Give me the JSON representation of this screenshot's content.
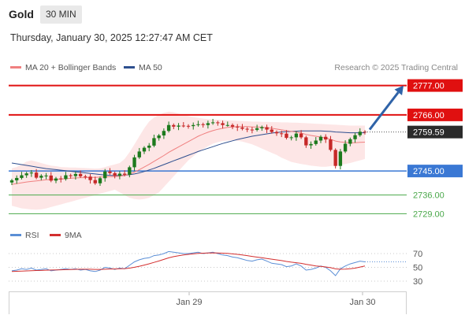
{
  "header": {
    "asset": "Gold",
    "timeframe": "30 MIN",
    "datetime": "Thursday, January 30, 2025 12:27:47 AM CET"
  },
  "legend": {
    "ma20": "MA 20 + Bollinger Bands",
    "ma50": "MA 50",
    "credit": "Research © 2025 Trading Central"
  },
  "rsi_legend": {
    "rsi": "RSI",
    "ma": "9MA"
  },
  "colors": {
    "up": "#1d7a1d",
    "down": "#c62828",
    "resistance": "#e01010",
    "support": "#3a78d4",
    "target": "#4aa84a",
    "ma20": "#f08080",
    "ma50": "#2e4f8f",
    "band": "#fde3e3",
    "arrow": "#2f63a8",
    "rsi": "#5b8fd6",
    "rsi_ma": "#d32f2f"
  },
  "chart_data": {
    "type": "candlestick",
    "instrument": "Gold",
    "interval": "30 MIN",
    "x_ticks": [
      "Jan 29",
      "Jan 30"
    ],
    "ylim": [
      2725,
      2781
    ],
    "levels": [
      {
        "value": "2777.00",
        "kind": "resistance"
      },
      {
        "value": "2766.00",
        "kind": "resistance"
      },
      {
        "value": "2745.00",
        "kind": "support"
      },
      {
        "value": "2736.00",
        "kind": "target"
      },
      {
        "value": "2729.00",
        "kind": "target"
      }
    ],
    "last_price": "2759.59",
    "arrow": {
      "from": 2760.5,
      "to": 2777.0,
      "direction": "up"
    },
    "closes": [
      2741.5,
      2742.4,
      2743.4,
      2744.1,
      2744.4,
      2742.5,
      2743.2,
      2743.3,
      2741.4,
      2742.2,
      2742.0,
      2743.4,
      2743.1,
      2743.9,
      2743.0,
      2742.9,
      2741.6,
      2740.4,
      2742.3,
      2744.8,
      2744.2,
      2743.2,
      2744.0,
      2743.6,
      2746.4,
      2750.1,
      2752.3,
      2753.7,
      2754.5,
      2757.3,
      2758.3,
      2760.0,
      2762.2,
      2761.6,
      2762.0,
      2761.9,
      2761.8,
      2762.2,
      2762.5,
      2762.2,
      2762.9,
      2763.2,
      2762.9,
      2762.2,
      2762.2,
      2761.6,
      2761.3,
      2760.8,
      2760.5,
      2760.4,
      2761.0,
      2761.4,
      2760.5,
      2759.6,
      2759.1,
      2759.0,
      2757.4,
      2757.6,
      2759.0,
      2757.6,
      2754.6,
      2755.1,
      2756.4,
      2757.8,
      2756.8,
      2752.9,
      2746.9,
      2752.3,
      2755.2,
      2756.9,
      2758.4,
      2759.7,
      2759.59
    ],
    "ma20": [
      2740.0,
      2740.3,
      2740.6,
      2740.9,
      2741.1,
      2741.3,
      2741.5,
      2741.7,
      2741.8,
      2741.9,
      2742.0,
      2742.1,
      2742.3,
      2742.4,
      2742.5,
      2742.5,
      2742.6,
      2742.6,
      2742.7,
      2742.8,
      2742.9,
      2742.9,
      2743.1,
      2743.3,
      2743.8,
      2744.6,
      2745.5,
      2746.5,
      2747.5,
      2748.6,
      2749.7,
      2750.8,
      2752.0,
      2753.0,
      2754.0,
      2755.0,
      2756.0,
      2757.0,
      2758.0,
      2758.8,
      2759.5,
      2760.1,
      2760.6,
      2761.0,
      2761.3,
      2761.5,
      2761.6,
      2761.6,
      2761.6,
      2761.5,
      2761.5,
      2761.4,
      2761.2,
      2761.0,
      2760.7,
      2760.4,
      2760.1,
      2759.8,
      2759.6,
      2759.2,
      2758.7,
      2758.3,
      2758.0,
      2757.7,
      2757.4,
      2756.9,
      2756.2,
      2755.9,
      2755.7,
      2755.6,
      2755.6,
      2755.7,
      2755.8
    ],
    "ma50": [
      2748.0,
      2747.7,
      2747.4,
      2747.1,
      2746.8,
      2746.5,
      2746.2,
      2745.9,
      2745.7,
      2745.5,
      2745.3,
      2745.1,
      2744.9,
      2744.7,
      2744.5,
      2744.3,
      2744.1,
      2743.9,
      2743.7,
      2743.5,
      2743.4,
      2743.3,
      2743.3,
      2743.4,
      2743.6,
      2743.9,
      2744.3,
      2744.8,
      2745.4,
      2746.0,
      2746.7,
      2747.4,
      2748.1,
      2748.8,
      2749.5,
      2750.2,
      2750.9,
      2751.6,
      2752.3,
      2752.9,
      2753.5,
      2754.1,
      2754.7,
      2755.3,
      2755.8,
      2756.3,
      2756.8,
      2757.2,
      2757.6,
      2758.0,
      2758.3,
      2758.6,
      2758.9,
      2759.2,
      2759.4,
      2759.6,
      2759.7,
      2759.8,
      2759.9,
      2760.0,
      2760.0,
      2760.0,
      2760.0,
      2760.0,
      2759.9,
      2759.8,
      2759.6,
      2759.5,
      2759.4,
      2759.3,
      2759.3,
      2759.3,
      2759.3
    ],
    "band_upper": [
      2746.0,
      2746.5,
      2747.5,
      2748.5,
      2749.0,
      2748.5,
      2748.0,
      2747.5,
      2747.0,
      2746.8,
      2746.5,
      2746.4,
      2746.3,
      2746.3,
      2746.2,
      2746.1,
      2746.0,
      2745.9,
      2746.0,
      2746.5,
      2747.0,
      2747.5,
      2748.0,
      2749.5,
      2752.0,
      2755.0,
      2758.0,
      2761.0,
      2763.5,
      2765.0,
      2766.0,
      2766.8,
      2767.2,
      2767.0,
      2766.5,
      2766.0,
      2765.6,
      2765.2,
      2764.9,
      2764.6,
      2764.4,
      2764.3,
      2764.2,
      2764.1,
      2764.0,
      2763.9,
      2763.8,
      2763.7,
      2763.6,
      2763.5,
      2763.5,
      2763.4,
      2763.4,
      2763.3,
      2763.3,
      2763.2,
      2763.2,
      2763.1,
      2763.1,
      2763.0,
      2762.9,
      2762.8,
      2762.7,
      2762.6,
      2762.5,
      2762.4,
      2762.3,
      2762.2,
      2762.1,
      2762.0,
      2762.0,
      2762.0,
      2762.0
    ],
    "band_lower": [
      2732.0,
      2731.5,
      2731.0,
      2730.8,
      2730.6,
      2730.5,
      2730.7,
      2731.0,
      2731.5,
      2732.0,
      2732.5,
      2733.0,
      2733.5,
      2734.0,
      2734.5,
      2735.0,
      2735.5,
      2736.0,
      2736.5,
      2737.0,
      2737.5,
      2738.0,
      2737.0,
      2736.0,
      2735.0,
      2734.5,
      2734.3,
      2734.5,
      2735.0,
      2736.0,
      2737.0,
      2739.0,
      2741.0,
      2743.0,
      2745.0,
      2747.0,
      2749.0,
      2750.5,
      2752.0,
      2753.2,
      2754.3,
      2755.2,
      2755.8,
      2756.2,
      2756.4,
      2756.5,
      2756.3,
      2756.0,
      2755.5,
      2755.0,
      2754.2,
      2753.4,
      2752.6,
      2751.8,
      2751.0,
      2750.0,
      2749.2,
      2748.4,
      2748.0,
      2747.6,
      2747.3,
      2747.0,
      2746.8,
      2746.6,
      2746.6,
      2746.8,
      2747.0,
      2747.3,
      2747.6,
      2748.0,
      2748.5,
      2749.0,
      2749.5
    ],
    "rsi": {
      "ylim": [
        20,
        80
      ],
      "ticks": [
        "70",
        "50",
        "30"
      ],
      "values": [
        45,
        46,
        48,
        47,
        49,
        46,
        47,
        48,
        45,
        46,
        47,
        48,
        47,
        48,
        46,
        47,
        45,
        44,
        46,
        50,
        49,
        47,
        49,
        48,
        53,
        58,
        61,
        63,
        64,
        67,
        68,
        70,
        73,
        72,
        71,
        70,
        70,
        71,
        72,
        70,
        71,
        72,
        70,
        68,
        67,
        65,
        64,
        62,
        60,
        59,
        61,
        62,
        59,
        56,
        55,
        54,
        51,
        52,
        55,
        52,
        46,
        47,
        49,
        52,
        50,
        45,
        38,
        48,
        52,
        55,
        57,
        59,
        58
      ],
      "ma": [
        44,
        44.3,
        44.6,
        44.9,
        45.2,
        45.4,
        45.6,
        45.9,
        46.1,
        46.3,
        46.5,
        46.7,
        46.9,
        47.1,
        47.2,
        47.3,
        47.2,
        47.0,
        47.0,
        47.3,
        47.6,
        47.7,
        47.9,
        48.2,
        48.9,
        50.1,
        51.6,
        53.3,
        55.1,
        57.2,
        59.3,
        61.6,
        63.8,
        65.5,
        66.9,
        68.0,
        68.9,
        69.6,
        70.2,
        70.6,
        70.9,
        71.0,
        70.9,
        70.6,
        70.2,
        69.6,
        68.9,
        68.0,
        67.0,
        65.9,
        64.9,
        63.9,
        62.9,
        61.9,
        60.9,
        59.8,
        58.6,
        57.5,
        56.7,
        55.8,
        54.5,
        53.3,
        52.1,
        51.4,
        50.6,
        49.5,
        47.8,
        47.3,
        47.4,
        47.9,
        48.9,
        50.4,
        52.0
      ]
    }
  }
}
